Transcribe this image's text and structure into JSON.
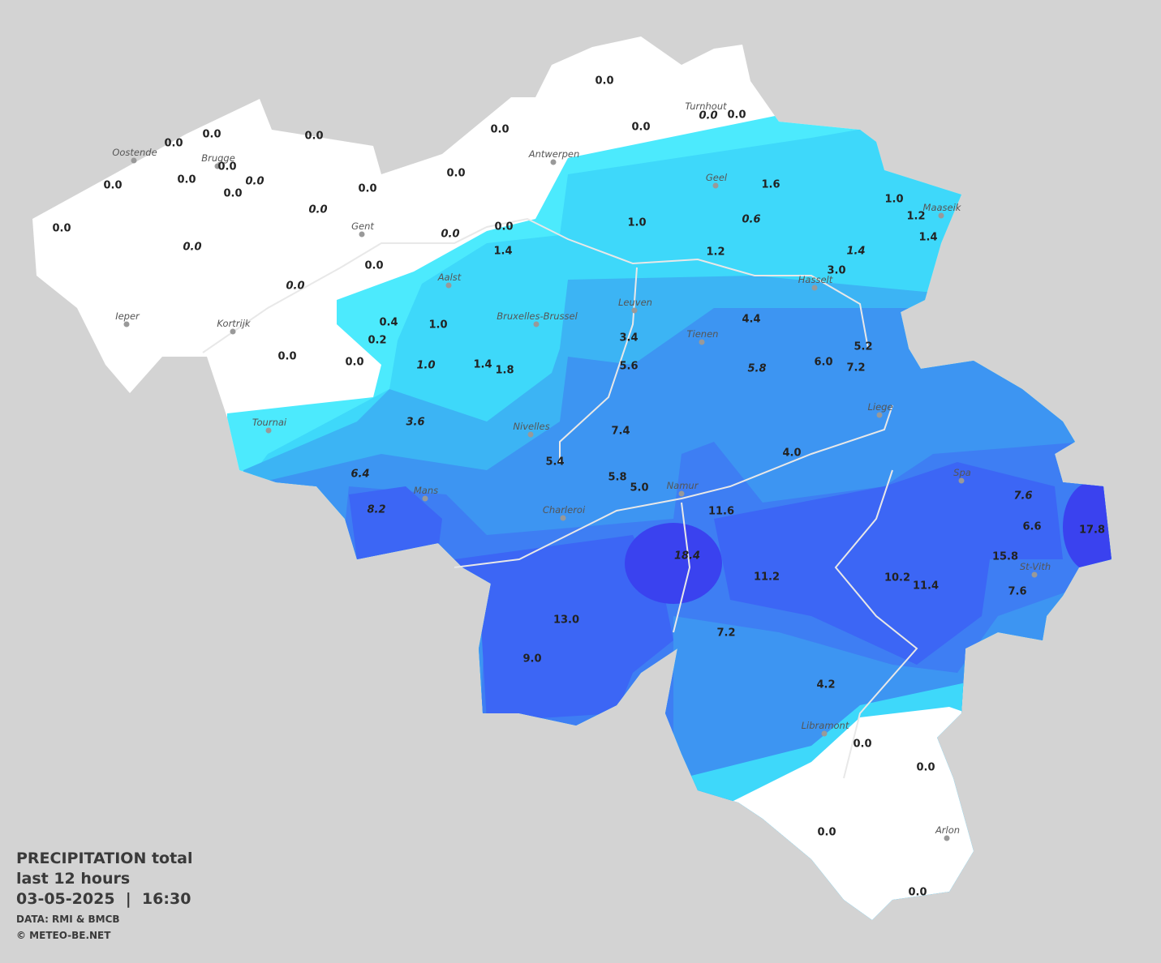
{
  "stations": [
    {
      "text": "0.0"
    },
    {
      "text": "0.0"
    },
    {
      "text": "0.0",
      "italic": true
    },
    {
      "text": "0.0"
    },
    {
      "text": "0.0"
    },
    {
      "text": "0.0"
    },
    {
      "text": "0.0"
    },
    {
      "text": "0.0"
    },
    {
      "text": "0.0"
    },
    {
      "text": "0.0"
    },
    {
      "text": "0.0",
      "italic": true
    },
    {
      "text": "0.0"
    },
    {
      "text": "0.0"
    },
    {
      "text": "0.0"
    },
    {
      "text": "0.0"
    },
    {
      "text": "0.0",
      "italic": true
    },
    {
      "text": "0.0"
    },
    {
      "text": "0.0",
      "italic": true
    },
    {
      "text": "0.0"
    },
    {
      "text": "0.0",
      "italic": true
    },
    {
      "text": "0.0"
    },
    {
      "text": "0.0",
      "italic": true
    },
    {
      "text": "0.0"
    },
    {
      "text": "0.0"
    },
    {
      "text": "1.4"
    },
    {
      "text": "1.6"
    },
    {
      "text": "1.0"
    },
    {
      "text": "1.2"
    },
    {
      "text": "1.4"
    },
    {
      "text": "1.0"
    },
    {
      "text": "0.6",
      "italic": true
    },
    {
      "text": "1.2"
    },
    {
      "text": "1.4",
      "italic": true
    },
    {
      "text": "3.0"
    },
    {
      "text": "0.4"
    },
    {
      "text": "1.0"
    },
    {
      "text": "0.2"
    },
    {
      "text": "4.4"
    },
    {
      "text": "3.4"
    },
    {
      "text": "5.2"
    },
    {
      "text": "1.0",
      "italic": true
    },
    {
      "text": "1.4"
    },
    {
      "text": "1.8"
    },
    {
      "text": "5.6"
    },
    {
      "text": "5.8",
      "italic": true
    },
    {
      "text": "6.0"
    },
    {
      "text": "7.2"
    },
    {
      "text": "3.6",
      "italic": true
    },
    {
      "text": "7.4"
    },
    {
      "text": "4.0"
    },
    {
      "text": "5.4"
    },
    {
      "text": "6.4",
      "italic": true
    },
    {
      "text": "5.8"
    },
    {
      "text": "5.0"
    },
    {
      "text": "8.2",
      "italic": true
    },
    {
      "text": "11.6"
    },
    {
      "text": "7.6",
      "italic": true
    },
    {
      "text": "6.6"
    },
    {
      "text": "17.8"
    },
    {
      "text": "18.4",
      "italic": true
    },
    {
      "text": "15.8"
    },
    {
      "text": "11.2"
    },
    {
      "text": "10.2"
    },
    {
      "text": "11.4"
    },
    {
      "text": "7.6"
    },
    {
      "text": "13.0"
    },
    {
      "text": "7.2"
    },
    {
      "text": "9.0"
    },
    {
      "text": "4.2"
    },
    {
      "text": "0.0"
    },
    {
      "text": "0.0"
    },
    {
      "text": "0.0"
    },
    {
      "text": "0.0"
    }
  ],
  "cities": [
    "Oostende",
    "Brugge",
    "Antwerpen",
    "Turnhout",
    "Gent",
    "Geel",
    "Maaseik",
    "Aalst",
    "Hasselt",
    "Ieper",
    "Leuven",
    "Bruxelles-Brussel",
    "Kortrijk",
    "Tienen",
    "Liege",
    "Tournai",
    "Nivelles",
    "Spa",
    "Mans",
    "Namur",
    "Charleroi",
    "St-Vith",
    "Libramont",
    "Arlon"
  ],
  "legend": {
    "title": "PRECIPITATION total",
    "period": "last 12 hours",
    "datetime": "03-05-2025  |  16:30",
    "source": "DATA: RMI & BMCB",
    "copyright": "© METEO-BE.NET"
  }
}
